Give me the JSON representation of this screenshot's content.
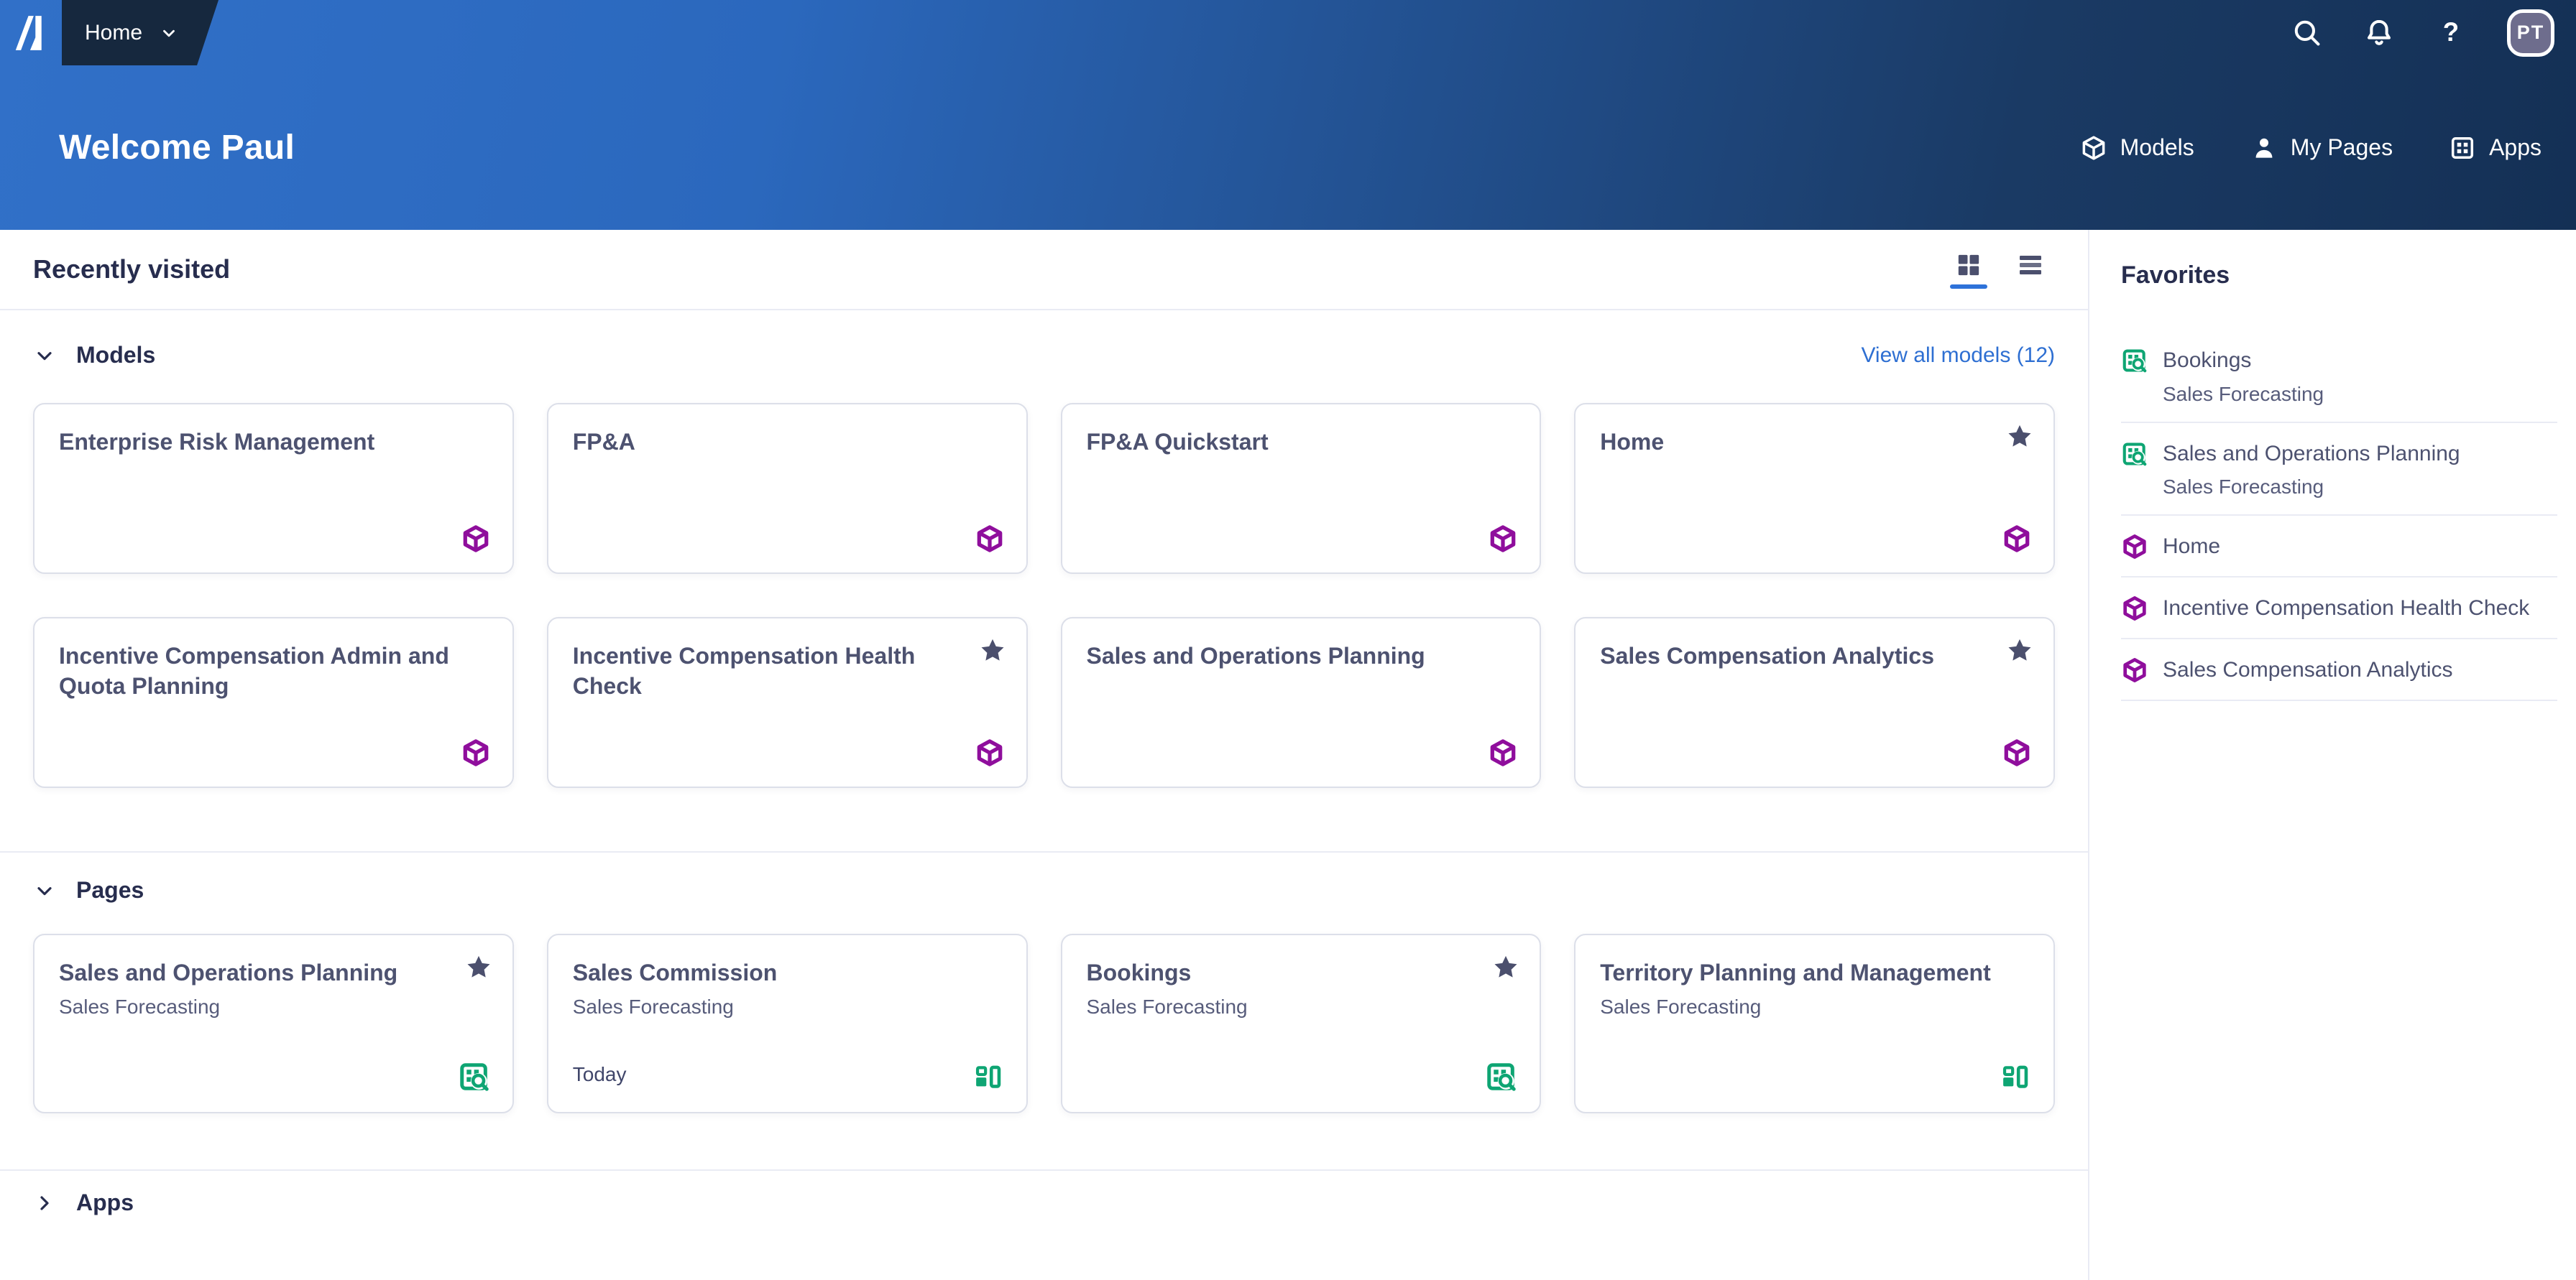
{
  "topbar": {
    "tab_label": "Home",
    "avatar_initials": "PT"
  },
  "banner": {
    "title": "Welcome Paul",
    "nav": [
      {
        "label": "Models",
        "icon": "cube-icon"
      },
      {
        "label": "My Pages",
        "icon": "person-icon"
      },
      {
        "label": "Apps",
        "icon": "apps-grid-icon"
      }
    ]
  },
  "recently_visited": {
    "title": "Recently visited"
  },
  "models_section": {
    "title": "Models",
    "view_all_label": "View all models (12)",
    "cards": [
      {
        "title": "Enterprise Risk Management",
        "starred": false
      },
      {
        "title": "FP&A",
        "starred": false
      },
      {
        "title": "FP&A Quickstart",
        "starred": false
      },
      {
        "title": "Home",
        "starred": true
      },
      {
        "title": "Incentive Compensation Admin and Quota Planning",
        "starred": false
      },
      {
        "title": "Incentive Compensation Health Check",
        "starred": true
      },
      {
        "title": "Sales and Operations Planning",
        "starred": false
      },
      {
        "title": "Sales Compensation Analytics",
        "starred": true
      }
    ]
  },
  "pages_section": {
    "title": "Pages",
    "cards": [
      {
        "title": "Sales and Operations Planning",
        "subtitle": "Sales Forecasting",
        "starred": true,
        "icon": "report-search"
      },
      {
        "title": "Sales Commission",
        "subtitle": "Sales Forecasting",
        "starred": false,
        "meta": "Today",
        "icon": "board"
      },
      {
        "title": "Bookings",
        "subtitle": "Sales Forecasting",
        "starred": true,
        "icon": "report-search"
      },
      {
        "title": "Territory Planning and Management",
        "subtitle": "Sales Forecasting",
        "starred": false,
        "icon": "board"
      }
    ]
  },
  "apps_section": {
    "title": "Apps"
  },
  "favorites": {
    "title": "Favorites",
    "items": [
      {
        "title": "Bookings",
        "subtitle": "Sales Forecasting",
        "icon": "report-search"
      },
      {
        "title": "Sales and Operations Planning",
        "subtitle": "Sales Forecasting",
        "icon": "report-search"
      },
      {
        "title": "Home",
        "icon": "model-cube"
      },
      {
        "title": "Incentive Compensation Health Check",
        "icon": "model-cube"
      },
      {
        "title": "Sales Compensation Analytics",
        "icon": "model-cube"
      }
    ]
  },
  "colors": {
    "link_blue": "#2E6FD2",
    "toggle_underline_blue": "#2E72D9",
    "model_magenta": "#8F0E9C",
    "page_green": "#0EA573",
    "star_slate": "#4B4F6D"
  }
}
